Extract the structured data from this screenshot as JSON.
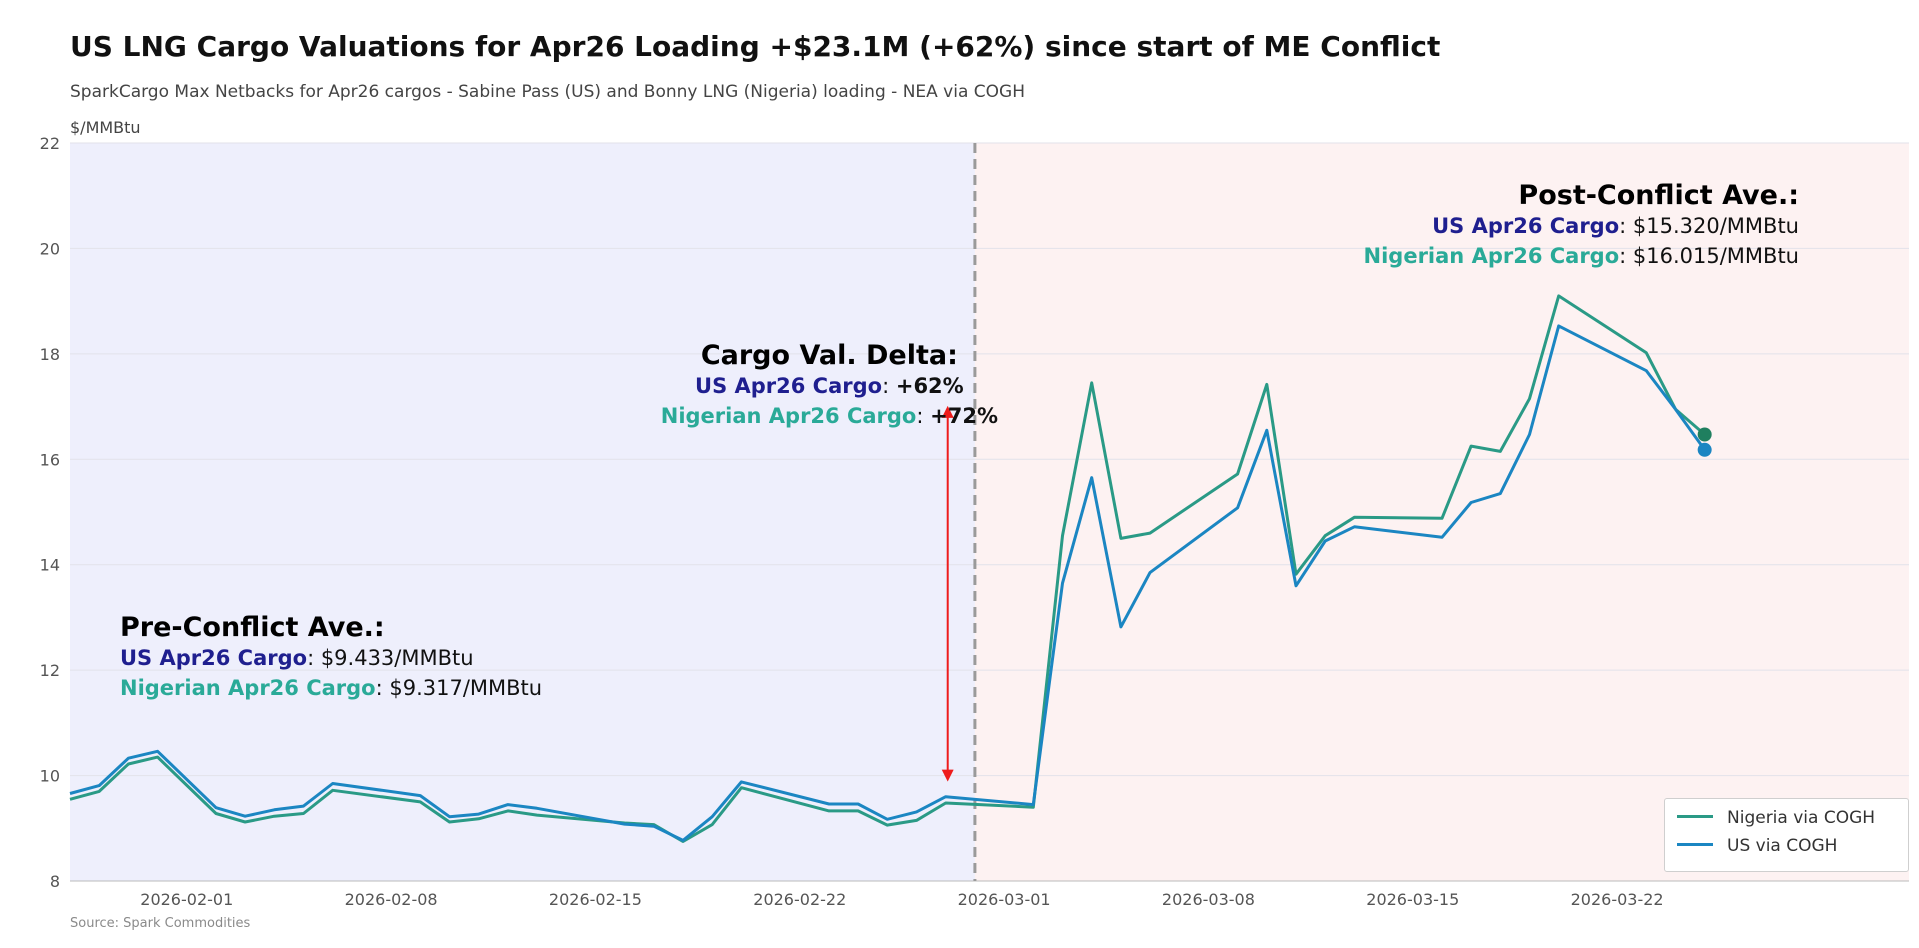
{
  "header": {
    "title": "US LNG Cargo Valuations for Apr26 Loading +$23.1M (+62%) since start of ME Conflict",
    "subtitle": "SparkCargo Max Netbacks for Apr26 cargos - Sabine Pass (US) and Bonny LNG (Nigeria) loading - NEA via COGH",
    "units": "$/MMBtu",
    "source": "Source: Spark Commodities"
  },
  "colors": {
    "nigeria": "#2a9a86",
    "us": "#1b86c2",
    "pre_bg": "#eeeffc",
    "post_bg": "#fdf2f2",
    "arrow": "#ee1c1c",
    "divider": "#9a9a9a",
    "us_label": "#1f1f8f",
    "ng_label": "#2aaa98"
  },
  "annotations": {
    "pre": {
      "heading": "Pre-Conflict Ave.:",
      "us_label": "US Apr26 Cargo",
      "us_value": ": $9.433/MMBtu",
      "ng_label": "Nigerian Apr26 Cargo",
      "ng_value": ": $9.317/MMBtu"
    },
    "delta": {
      "heading": "Cargo Val. Delta:",
      "us_label": "US Apr26 Cargo",
      "us_value": "+62%",
      "ng_label": "Nigerian Apr26 Cargo",
      "ng_value": "+72%",
      "sep": ": "
    },
    "post": {
      "heading": "Post-Conflict Ave.:",
      "us_label": "US Apr26 Cargo",
      "us_value": ": $15.320/MMBtu",
      "ng_label": "Nigerian Apr26 Cargo",
      "ng_value": ": $16.015/MMBtu"
    }
  },
  "legend": {
    "nigeria": "Nigeria via COGH",
    "us": "US via COGH",
    "placement": "bottom-right"
  },
  "chart_data": {
    "type": "line",
    "title": "US LNG Cargo Valuations for Apr26 Loading +$23.1M (+62%) since start of ME Conflict",
    "ylabel": "$/MMBtu",
    "ylim": [
      8,
      22
    ],
    "yticks": [
      8,
      10,
      12,
      14,
      16,
      18,
      20,
      22
    ],
    "x_domain": [
      "2026-01-28",
      "2026-04-01"
    ],
    "xticks": [
      "2026-02-01",
      "2026-02-08",
      "2026-02-15",
      "2026-02-22",
      "2026-03-01",
      "2026-03-08",
      "2026-03-15",
      "2026-03-22"
    ],
    "conflict_start": "2026-02-28",
    "delta_arrow": {
      "date": "2026-02-27",
      "from": 10.0,
      "to": 16.9
    },
    "grid": true,
    "series": [
      {
        "name": "Nigeria via COGH",
        "key": "nigeria",
        "x": [
          "2026-01-28",
          "2026-01-29",
          "2026-01-30",
          "2026-01-31",
          "2026-02-02",
          "2026-02-03",
          "2026-02-04",
          "2026-02-05",
          "2026-02-06",
          "2026-02-09",
          "2026-02-10",
          "2026-02-11",
          "2026-02-12",
          "2026-02-13",
          "2026-02-16",
          "2026-02-17",
          "2026-02-18",
          "2026-02-19",
          "2026-02-20",
          "2026-02-23",
          "2026-02-24",
          "2026-02-25",
          "2026-02-26",
          "2026-02-27",
          "2026-03-02",
          "2026-03-03",
          "2026-03-04",
          "2026-03-05",
          "2026-03-06",
          "2026-03-09",
          "2026-03-10",
          "2026-03-11",
          "2026-03-12",
          "2026-03-13",
          "2026-03-16",
          "2026-03-17",
          "2026-03-18",
          "2026-03-19",
          "2026-03-20",
          "2026-03-23",
          "2026-03-24"
        ],
        "values": [
          9.55,
          9.7,
          10.22,
          10.35,
          9.28,
          9.12,
          9.23,
          9.28,
          9.72,
          9.5,
          9.12,
          9.18,
          9.33,
          9.25,
          9.1,
          9.07,
          8.75,
          9.07,
          9.77,
          9.33,
          9.33,
          9.06,
          9.15,
          9.48,
          9.4,
          14.55,
          17.45,
          14.5,
          14.6,
          15.72,
          17.42,
          13.82,
          14.55,
          14.9,
          14.88,
          16.25,
          16.15,
          17.15,
          19.1,
          18.02,
          16.95
        ]
      },
      {
        "name": "US via COGH",
        "key": "us",
        "x": [
          "2026-01-28",
          "2026-01-29",
          "2026-01-30",
          "2026-01-31",
          "2026-02-02",
          "2026-02-03",
          "2026-02-04",
          "2026-02-05",
          "2026-02-06",
          "2026-02-09",
          "2026-02-10",
          "2026-02-11",
          "2026-02-12",
          "2026-02-13",
          "2026-02-16",
          "2026-02-17",
          "2026-02-18",
          "2026-02-19",
          "2026-02-20",
          "2026-02-23",
          "2026-02-24",
          "2026-02-25",
          "2026-02-26",
          "2026-02-27",
          "2026-03-02",
          "2026-03-03",
          "2026-03-04",
          "2026-03-05",
          "2026-03-06",
          "2026-03-09",
          "2026-03-10",
          "2026-03-11",
          "2026-03-12",
          "2026-03-13",
          "2026-03-16",
          "2026-03-17",
          "2026-03-18",
          "2026-03-19",
          "2026-03-20",
          "2026-03-23",
          "2026-03-24"
        ],
        "values": [
          9.66,
          9.81,
          10.33,
          10.46,
          9.39,
          9.23,
          9.35,
          9.42,
          9.85,
          9.62,
          9.22,
          9.27,
          9.45,
          9.38,
          9.08,
          9.04,
          8.77,
          9.22,
          9.88,
          9.46,
          9.46,
          9.17,
          9.31,
          9.6,
          9.45,
          13.65,
          15.65,
          12.82,
          13.85,
          15.08,
          16.55,
          13.6,
          14.45,
          14.72,
          14.52,
          15.18,
          15.35,
          16.47,
          18.53,
          17.68,
          16.95
        ]
      }
    ],
    "endpoints": [
      {
        "series": "nigeria",
        "date": "2026-03-25",
        "value": 16.47
      },
      {
        "series": "us",
        "date": "2026-03-25",
        "value": 16.18
      }
    ]
  }
}
